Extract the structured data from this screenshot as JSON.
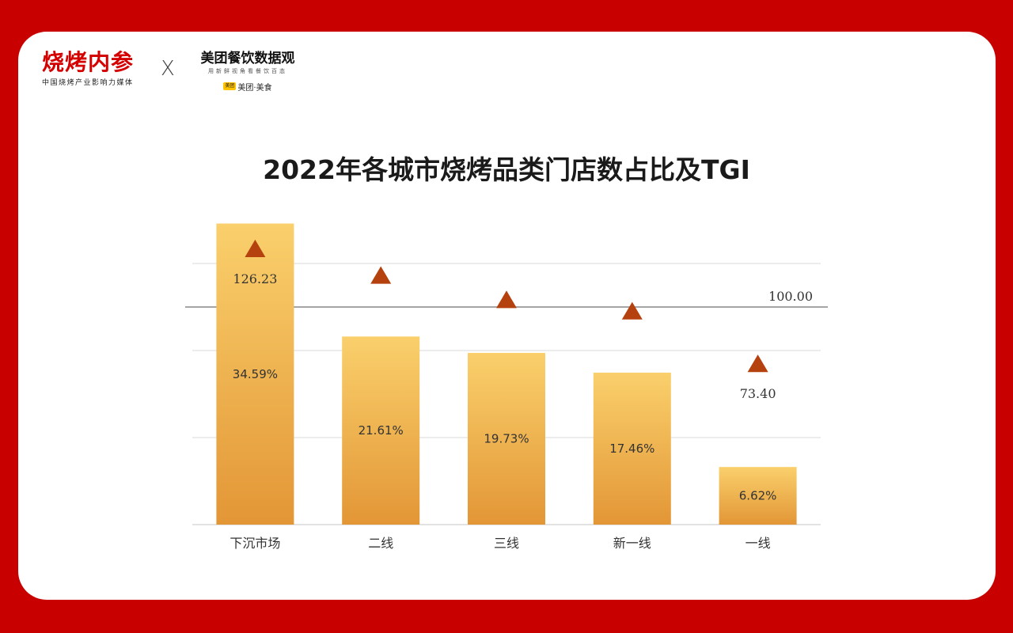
{
  "branding": {
    "left_logo_name": "烧烤内参",
    "left_logo_tagline": "中国烧烤产业影响力媒体",
    "separator": "X",
    "right_logo_name": "美团餐饮数据观",
    "right_logo_tagline": "用新鲜视角看餐饮百态",
    "right_logo_tag_badge": "美团",
    "right_logo_tag_text": "美团·美食"
  },
  "colors": {
    "frame": "#c80000",
    "bar_top": "#fad06c",
    "bar_bottom": "#e39636",
    "triangle": "#b5420e",
    "grid": "#d9d9d9",
    "reference_line": "#a6a6a6"
  },
  "chart_data": {
    "type": "bar",
    "title": "2022年各城市烧烤品类门店数占比及TGI",
    "categories": [
      "下沉市场",
      "二线",
      "三线",
      "新一线",
      "一线"
    ],
    "series": [
      {
        "kind": "bar",
        "values": [
          34.59,
          21.61,
          19.73,
          17.46,
          6.62
        ],
        "labels": [
          "34.59%",
          "21.61%",
          "19.73%",
          "17.46%",
          "6.62%"
        ]
      },
      {
        "kind": "marker",
        "marker": "triangle",
        "values": [
          126.23,
          114.0,
          102.8,
          97.6,
          73.4
        ],
        "labels": [
          "126.23",
          "",
          "",
          "",
          "73.40"
        ]
      }
    ],
    "reference_line": {
      "value": 100,
      "label": "100.00"
    },
    "bar_axis_range": [
      0,
      40
    ],
    "tgi_axis_range": [
      0,
      160
    ],
    "grid": true,
    "legend": "none"
  }
}
